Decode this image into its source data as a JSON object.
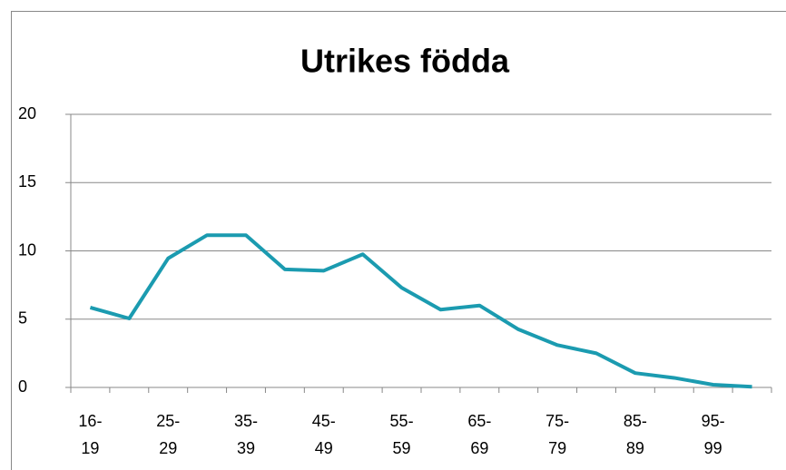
{
  "chart_data": {
    "type": "line",
    "title": "Utrikes födda",
    "categories": [
      "16-19",
      null,
      "25-29",
      null,
      "35-39",
      null,
      "45-49",
      null,
      "55-59",
      null,
      "65-69",
      null,
      "75-79",
      null,
      "85-89",
      null,
      "95-99",
      null
    ],
    "values": [
      5.85,
      5.05,
      9.45,
      11.15,
      11.15,
      8.65,
      8.55,
      9.75,
      7.3,
      5.7,
      6.0,
      4.25,
      3.1,
      2.5,
      1.05,
      0.7,
      0.2,
      0.05
    ],
    "color": "#1b9bb0",
    "ylim": [
      0,
      20
    ],
    "yticks": [
      0,
      5,
      10,
      15,
      20
    ],
    "grid": true
  }
}
